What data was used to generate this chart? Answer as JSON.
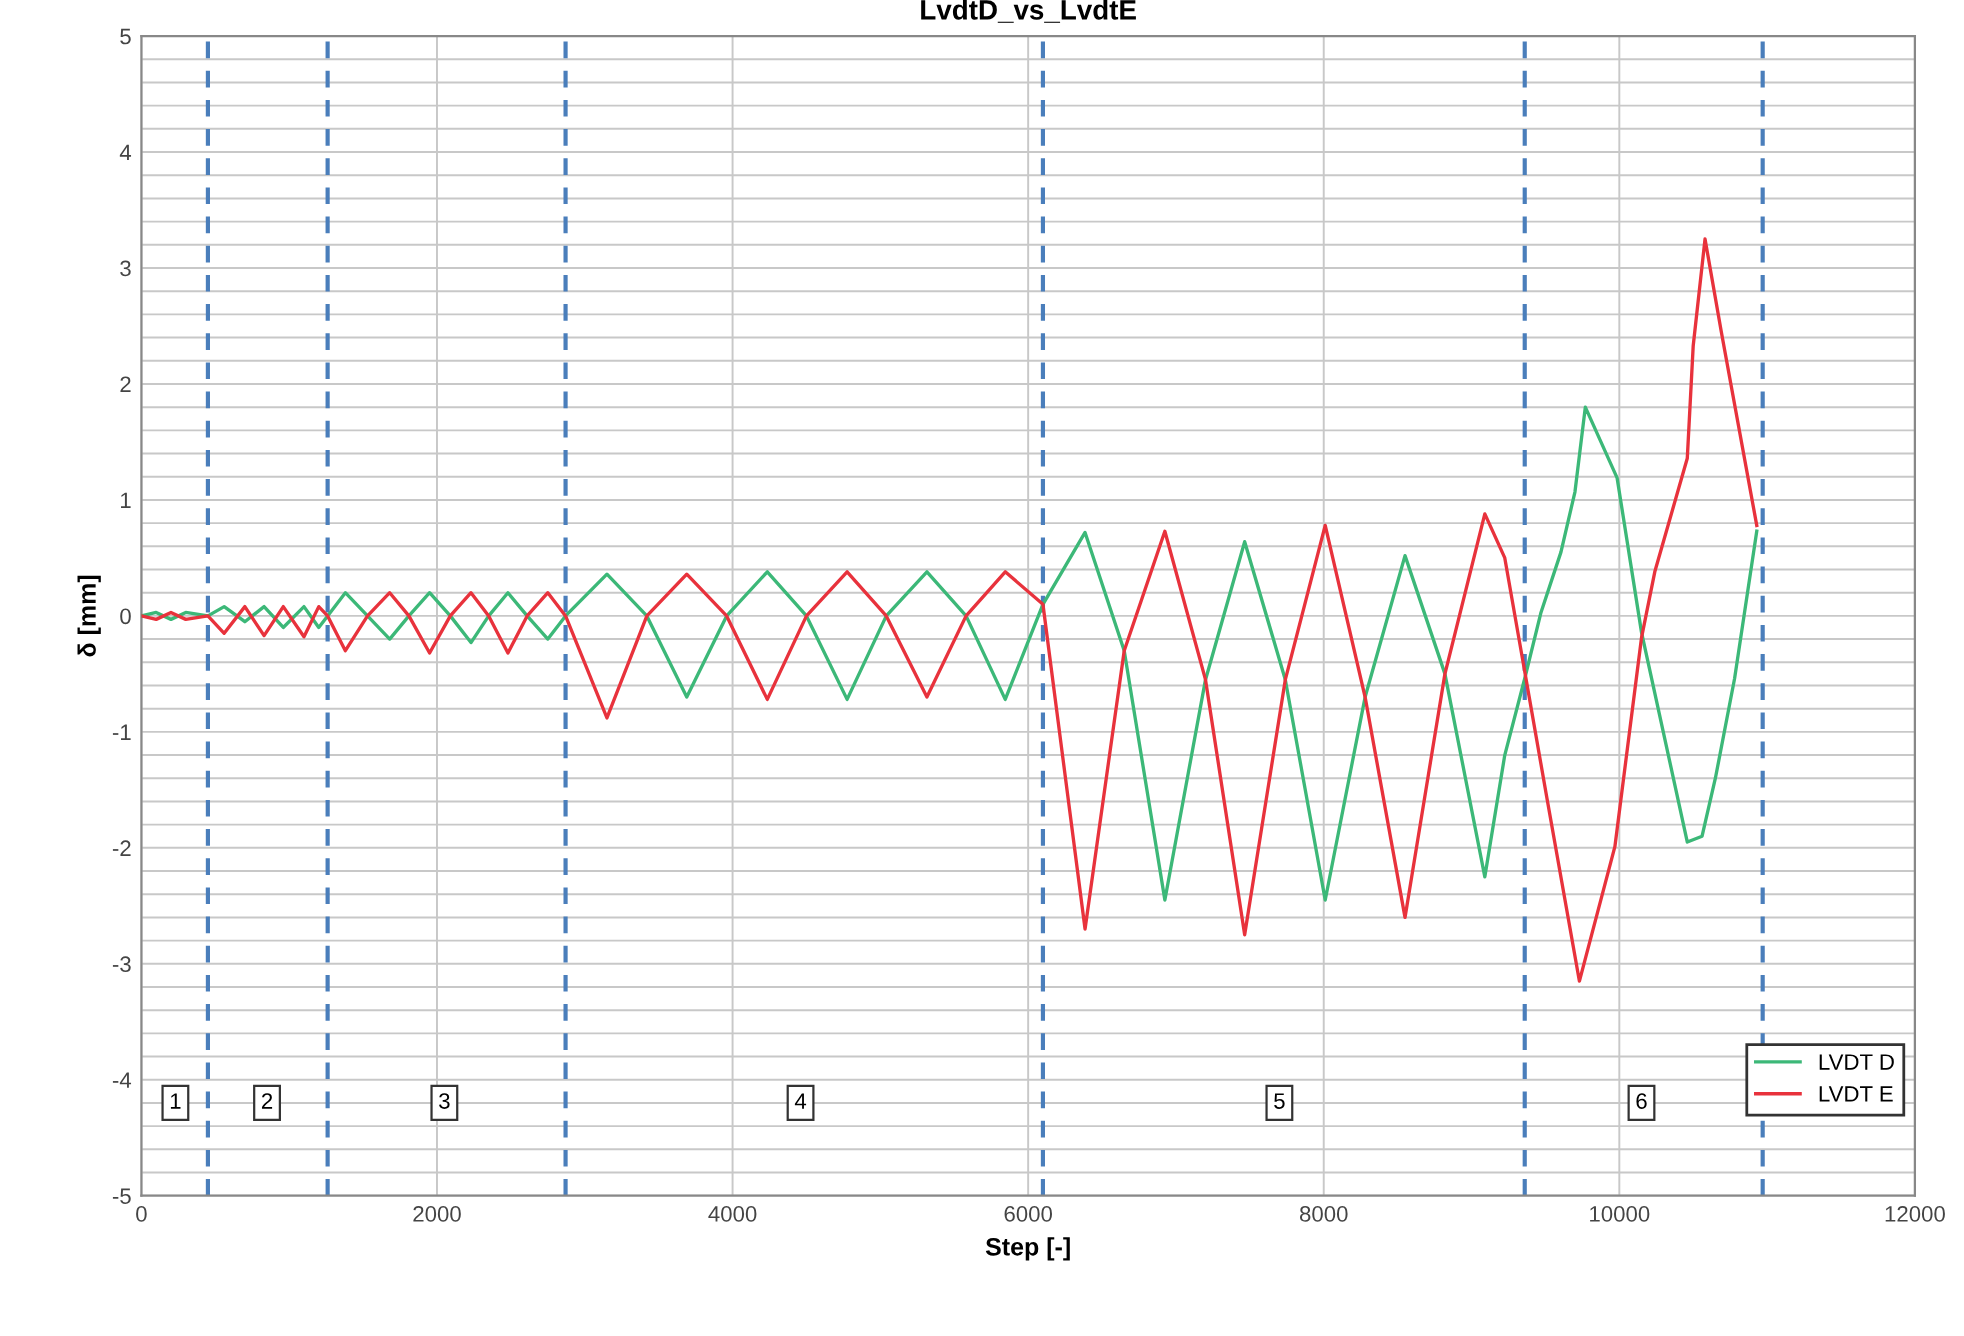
{
  "chart_data": {
    "type": "line",
    "title": "LvdtD_vs_LvdtE",
    "xlabel": "Step [-]",
    "ylabel": "δ [mm]",
    "xlim": [
      0,
      12000
    ],
    "xticks": [
      0,
      2000,
      4000,
      6000,
      8000,
      10000,
      12000
    ],
    "ylim": [
      -5,
      5
    ],
    "yticks": [
      -5,
      {
        "value": -4.8,
        "label": null
      },
      {
        "value": -4.6,
        "label": null
      },
      {
        "value": -4.4,
        "label": null
      },
      {
        "value": -4.2,
        "label": null
      },
      -4,
      {
        "value": -3.8,
        "label": null
      },
      {
        "value": -3.6,
        "label": null
      },
      {
        "value": -3.4,
        "label": null
      },
      {
        "value": -3.2,
        "label": null
      },
      -3,
      {
        "value": -2.8,
        "label": null
      },
      {
        "value": -2.6,
        "label": null
      },
      {
        "value": -2.4,
        "label": null
      },
      {
        "value": -2.2,
        "label": null
      },
      -2,
      {
        "value": -1.8,
        "label": null
      },
      {
        "value": -1.6,
        "label": null
      },
      {
        "value": -1.4,
        "label": null
      },
      {
        "value": -1.2,
        "label": null
      },
      -1,
      {
        "value": -0.8,
        "label": null
      },
      {
        "value": -0.6,
        "label": null
      },
      {
        "value": -0.4,
        "label": null
      },
      {
        "value": -0.2,
        "label": null
      },
      0,
      {
        "value": 0.2,
        "label": null
      },
      {
        "value": 0.4,
        "label": null
      },
      {
        "value": 0.6,
        "label": null
      },
      {
        "value": 0.8,
        "label": null
      },
      1,
      {
        "value": 1.2,
        "label": null
      },
      {
        "value": 1.4,
        "label": null
      },
      {
        "value": 1.6,
        "label": null
      },
      {
        "value": 1.8,
        "label": null
      },
      2,
      {
        "value": 2.2,
        "label": null
      },
      {
        "value": 2.4,
        "label": null
      },
      {
        "value": 2.6,
        "label": null
      },
      {
        "value": 2.8,
        "label": null
      },
      3,
      {
        "value": 3.2,
        "label": null
      },
      {
        "value": 3.4,
        "label": null
      },
      {
        "value": 3.6,
        "label": null
      },
      {
        "value": 3.8,
        "label": null
      },
      4,
      {
        "value": 4.2,
        "label": null
      },
      {
        "value": 4.4,
        "label": null
      },
      {
        "value": 4.6,
        "label": null
      },
      {
        "value": 4.8,
        "label": null
      },
      5
    ],
    "grid": true,
    "legend": "bottom right",
    "line_style": "solid",
    "marker": "none",
    "series": [
      {
        "name": "LVDT D",
        "color": "#3cb878",
        "x": [
          0,
          100,
          200,
          300,
          450,
          560,
          700,
          830,
          960,
          1100,
          1200,
          1260,
          1380,
          1530,
          1680,
          1810,
          1950,
          2090,
          2230,
          2350,
          2480,
          2610,
          2750,
          2870,
          3150,
          3420,
          3690,
          3960,
          4235,
          4500,
          4775,
          5040,
          5315,
          5580,
          5845,
          6100,
          6385,
          6650,
          6925,
          7200,
          7465,
          7740,
          8010,
          8280,
          8550,
          8820,
          9090,
          9225,
          9360,
          9470,
          9605,
          9700,
          9770,
          9985,
          10150,
          10460,
          10560,
          10650,
          10780,
          10930
        ],
        "values": [
          0,
          0.03,
          -0.03,
          0.03,
          0,
          0.08,
          -0.05,
          0.08,
          -0.1,
          0.08,
          -0.1,
          0,
          0.2,
          0,
          -0.2,
          0,
          0.2,
          0,
          -0.23,
          0,
          0.2,
          0,
          -0.2,
          0,
          0.36,
          0,
          -0.7,
          0,
          0.38,
          0,
          -0.72,
          0,
          0.38,
          0,
          -0.72,
          0.1,
          0.72,
          -0.3,
          -2.45,
          -0.55,
          0.64,
          -0.55,
          -2.45,
          -0.7,
          0.52,
          -0.5,
          -2.25,
          -1.2,
          -0.54,
          0.03,
          0.55,
          1.07,
          1.8,
          1.19,
          -0.14,
          -1.95,
          -1.9,
          -1.4,
          -0.54,
          0.73
        ]
      },
      {
        "name": "LVDT E",
        "color": "#e8323c",
        "x": [
          0,
          100,
          200,
          300,
          450,
          560,
          700,
          830,
          960,
          1100,
          1200,
          1260,
          1380,
          1530,
          1680,
          1810,
          1950,
          2090,
          2230,
          2350,
          2480,
          2610,
          2750,
          2870,
          3150,
          3420,
          3690,
          3960,
          4235,
          4500,
          4775,
          5040,
          5315,
          5580,
          5845,
          6100,
          6385,
          6650,
          6925,
          7200,
          7465,
          7740,
          8010,
          8280,
          8550,
          8820,
          9090,
          9225,
          9360,
          9510,
          9730,
          9970,
          10150,
          10240,
          10460,
          10500,
          10580,
          10690,
          10930
        ],
        "values": [
          0,
          -0.03,
          0.03,
          -0.03,
          0,
          -0.15,
          0.08,
          -0.17,
          0.08,
          -0.18,
          0.08,
          0,
          -0.3,
          0,
          0.2,
          0,
          -0.32,
          0,
          0.2,
          0,
          -0.32,
          0,
          0.2,
          0,
          -0.88,
          0,
          0.36,
          0,
          -0.72,
          0,
          0.38,
          0,
          -0.7,
          0,
          0.38,
          0.1,
          -2.7,
          -0.3,
          0.73,
          -0.55,
          -2.75,
          -0.55,
          0.78,
          -0.7,
          -2.6,
          -0.5,
          0.88,
          0.5,
          -0.48,
          -1.57,
          -3.15,
          -1.99,
          -0.19,
          0.38,
          1.36,
          2.33,
          3.25,
          2.45,
          0.78
        ]
      }
    ],
    "ref_lines": [
      {
        "axis": "x",
        "value": 450,
        "color": "#4a7ebb",
        "line_style": "dashed"
      },
      {
        "axis": "x",
        "value": 1260,
        "color": "#4a7ebb",
        "line_style": "dashed"
      },
      {
        "axis": "x",
        "value": 2870,
        "color": "#4a7ebb",
        "line_style": "dashed"
      },
      {
        "axis": "x",
        "value": 6100,
        "color": "#4a7ebb",
        "line_style": "dashed"
      },
      {
        "axis": "x",
        "value": 9360,
        "color": "#4a7ebb",
        "line_style": "dashed"
      },
      {
        "axis": "x",
        "value": 10970,
        "color": "#4a7ebb",
        "line_style": "dashed"
      }
    ],
    "annotations": [
      {
        "text": "1",
        "x": 230,
        "y": -4.2
      },
      {
        "text": "2",
        "x": 850,
        "y": -4.2
      },
      {
        "text": "3",
        "x": 2050,
        "y": -4.2
      },
      {
        "text": "4",
        "x": 4460,
        "y": -4.2
      },
      {
        "text": "5",
        "x": 7700,
        "y": -4.2
      },
      {
        "text": "6",
        "x": 10150,
        "y": -4.2
      }
    ]
  }
}
